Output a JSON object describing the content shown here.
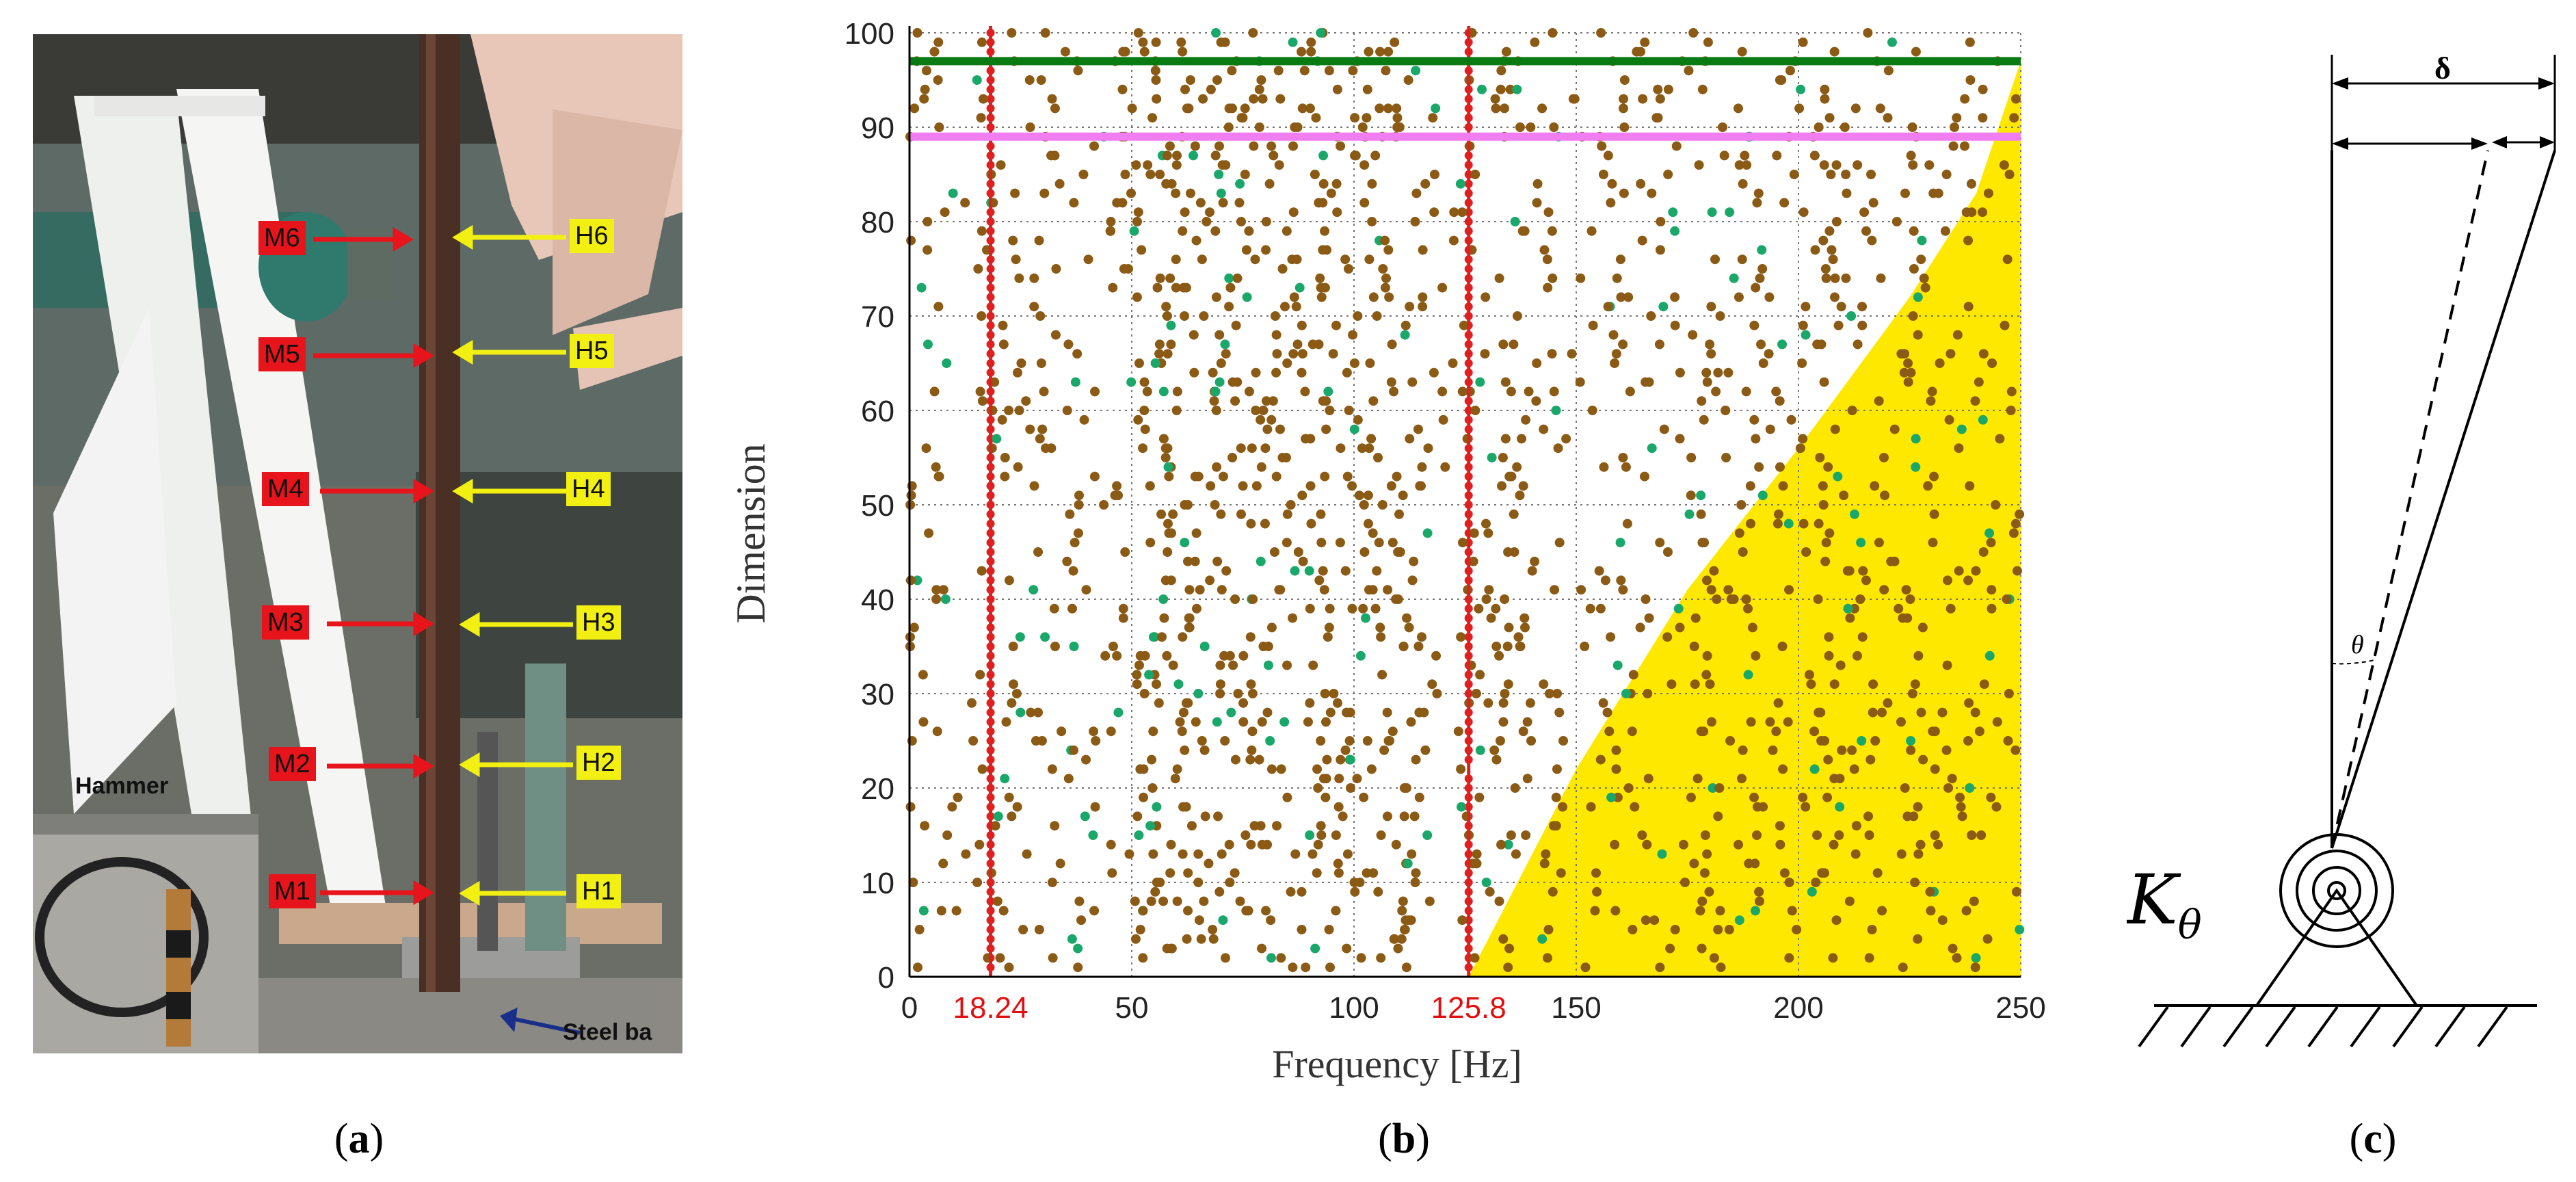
{
  "figure": {
    "panel_a": {
      "caption": "a",
      "hammer_label": "Hammer",
      "steel_label": "Steel ba",
      "m_tags": [
        "M6",
        "M5",
        "M4",
        "M3",
        "M2",
        "M1"
      ],
      "h_tags": [
        "H6",
        "H5",
        "H4",
        "H3",
        "H2",
        "H1"
      ],
      "colors": {
        "m_tag": "#e8141b",
        "h_tag": "#f2ef12",
        "m_arrow": "#e8141b",
        "h_arrow": "#f2ef12"
      }
    },
    "panel_b": {
      "caption": "b"
    },
    "panel_c": {
      "caption": "c",
      "delta_label": "δ",
      "theta_label": "θ",
      "k_label": "K",
      "k_subscript": "θ"
    }
  },
  "chart_data": {
    "type": "scatter",
    "xlabel": "Frequency [Hz]",
    "ylabel": "Dimension",
    "xlim": [
      0,
      250
    ],
    "ylim": [
      0,
      100
    ],
    "x_ticks": [
      0,
      50,
      100,
      150,
      200,
      250
    ],
    "y_ticks": [
      0,
      10,
      20,
      30,
      40,
      50,
      60,
      70,
      80,
      90,
      100
    ],
    "highlight_ticks": [
      "18.24",
      "125.8"
    ],
    "highlight_tick_values": [
      18.24,
      125.8
    ],
    "grid": true,
    "stable_frequency_lines": [
      18.24,
      125.8
    ],
    "horizontal_lines": [
      {
        "y": 97,
        "color": "#0a7a12"
      },
      {
        "y": 89,
        "color": "#f07ef0"
      }
    ],
    "yellow_region": {
      "x_start": 125.8,
      "boundary": [
        [
          125.8,
          0
        ],
        [
          150,
          22
        ],
        [
          175,
          41
        ],
        [
          200,
          56
        ],
        [
          225,
          72
        ],
        [
          240,
          83
        ],
        [
          250,
          97
        ]
      ],
      "color": "#ffe800"
    },
    "dot_columns_hz": [
      1,
      18.24,
      22,
      35,
      52,
      58,
      60,
      68,
      75,
      82,
      90,
      98,
      105,
      112,
      125.8,
      130,
      140,
      160,
      175,
      185,
      200,
      210,
      220,
      232,
      245
    ],
    "colors": {
      "stable_poles": "#e02020",
      "unstable_poles": "#8b5a14",
      "damping_poles": "#1aa86a",
      "tick_highlight": "#e01010"
    }
  }
}
